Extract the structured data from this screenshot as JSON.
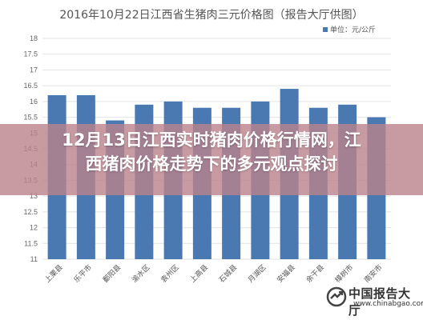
{
  "chart_data": {
    "type": "bar",
    "title": "2016年10月22日江西省生猪肉三元价格图（报告大厅供图）",
    "unit_legend": "单位：元/公斤",
    "categories": [
      "上栗县",
      "乐平市",
      "鄱阳县",
      "渝水区",
      "袁州区",
      "上高县",
      "石城县",
      "月湖区",
      "安福县",
      "余干县",
      "樟树市",
      "南安市"
    ],
    "values": [
      16.2,
      16.2,
      15.4,
      15.9,
      16.0,
      15.8,
      15.8,
      16.0,
      16.4,
      15.8,
      15.9,
      15.5
    ],
    "ylim": [
      11,
      18
    ],
    "yticks": [
      "18",
      "17.5",
      "17",
      "16.5",
      "16",
      "15.5",
      "15",
      "14.5",
      "14",
      "13.5",
      "13",
      "12.5",
      "12",
      "11.5",
      "11"
    ],
    "grid": true,
    "legend_position": "top-right",
    "bar_color": "#4a78b0"
  },
  "overlay": {
    "headline_line1": "12月13日江西实时猪肉价格行情网，江",
    "headline_line2": "西猪肉价格走势下的多元观点探讨",
    "band_color": "#ba828c"
  },
  "watermark": {
    "name_cn": "中国报告大厅",
    "url": "www.chinabgao.com",
    "logo_icon": "report-hall-logo-icon"
  }
}
